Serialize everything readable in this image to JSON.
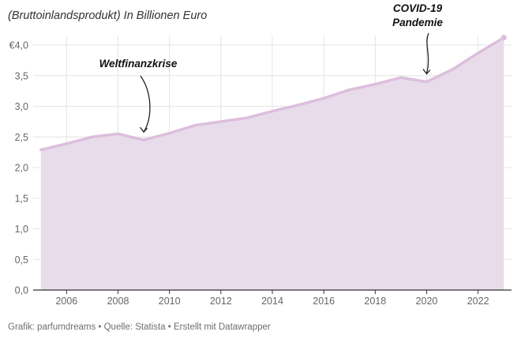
{
  "subtitle": "(Bruttoinlandsprodukt) In Billionen Euro",
  "footer": {
    "text": "Grafik: parfumdreams • Quelle: Statista • Erstellt mit Datawrapper"
  },
  "colors": {
    "line": "#dcbfdc",
    "area": "#e8dcea",
    "grid": "#e4e4e4",
    "axis": "#333333",
    "text": "#666666"
  },
  "chart_data": {
    "type": "area",
    "title": "",
    "xlabel": "",
    "ylabel": "",
    "x": [
      2005,
      2006,
      2007,
      2008,
      2009,
      2010,
      2011,
      2012,
      2013,
      2014,
      2015,
      2016,
      2017,
      2018,
      2019,
      2020,
      2021,
      2022,
      2023
    ],
    "series": [
      {
        "values": [
          2.29,
          2.39,
          2.5,
          2.55,
          2.45,
          2.56,
          2.69,
          2.75,
          2.81,
          2.92,
          3.02,
          3.13,
          3.27,
          3.36,
          3.47,
          3.4,
          3.6,
          3.87,
          4.12
        ]
      }
    ],
    "xlim": [
      2004.7,
      2023.3
    ],
    "ylim": [
      0,
      4.0
    ],
    "x_ticks": [
      2006,
      2008,
      2010,
      2012,
      2014,
      2016,
      2018,
      2020,
      2022
    ],
    "x_tick_labels": [
      "2006",
      "2008",
      "2010",
      "2012",
      "2014",
      "2016",
      "2018",
      "2020",
      "2022"
    ],
    "y_ticks": [
      0,
      0.5,
      1.0,
      1.5,
      2.0,
      2.5,
      3.0,
      3.5,
      4.0
    ],
    "y_tick_labels": [
      "0,0",
      "0,5",
      "1,0",
      "1,5",
      "2,0",
      "2,5",
      "3,0",
      "3,5",
      "€4,0"
    ],
    "grid": true,
    "legend": "none",
    "annotations": [
      {
        "lines": [
          "Weltfinanzkrise"
        ],
        "x": 2009,
        "y": 2.45
      },
      {
        "lines": [
          "COVID-19",
          "Pandemie"
        ],
        "x": 2020,
        "y": 3.4
      }
    ]
  }
}
